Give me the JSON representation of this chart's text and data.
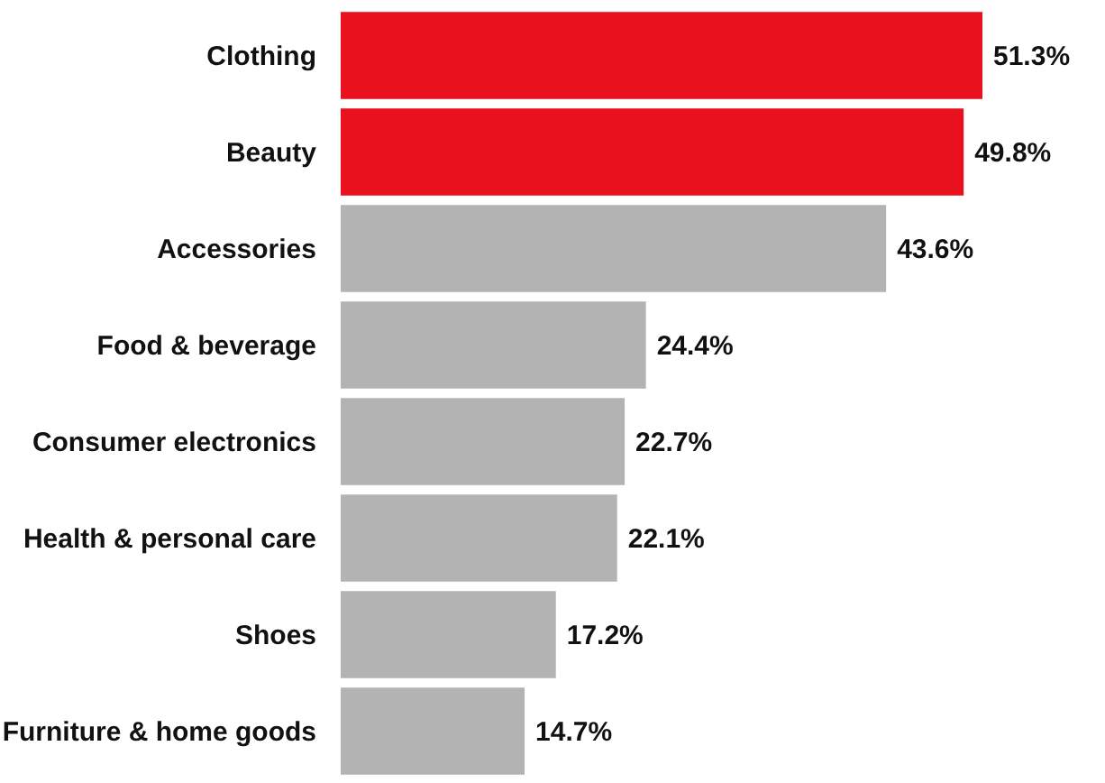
{
  "chart_data": {
    "type": "bar",
    "orientation": "horizontal",
    "categories": [
      "Clothing",
      "Beauty",
      "Accessories",
      "Food & beverage",
      "Consumer electronics",
      "Health & personal care",
      "Shoes",
      "Furniture & home goods"
    ],
    "values": [
      51.3,
      49.8,
      43.6,
      24.4,
      22.7,
      22.1,
      17.2,
      14.7
    ],
    "colors": [
      "#e8111d",
      "#e8111d",
      "#b3b3b3",
      "#b3b3b3",
      "#b3b3b3",
      "#b3b3b3",
      "#b3b3b3",
      "#b3b3b3"
    ],
    "value_labels": [
      "51.3%",
      "49.8%",
      "43.6%",
      "24.4%",
      "22.7%",
      "22.1%",
      "17.2%",
      "14.7%"
    ]
  }
}
